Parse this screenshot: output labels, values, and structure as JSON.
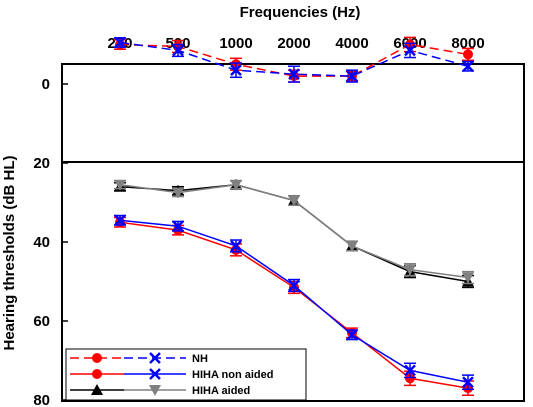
{
  "chart_data": {
    "type": "line",
    "title": "Frequencies (Hz)",
    "ylabel": "Hearing thresholds (dB HL)",
    "xlabel": "",
    "categories": [
      "250",
      "500",
      "1000",
      "2000",
      "4000",
      "6000",
      "8000"
    ],
    "ylim": [
      80,
      -8
    ],
    "yticks": [
      0,
      20,
      40,
      60,
      80
    ],
    "panel_split": 20,
    "grid": false,
    "legend_position": "bottom-left",
    "legend": [
      {
        "label": "NH",
        "markers": [
          "circle",
          "x"
        ],
        "style": "dashed",
        "colors": [
          "#ff0000",
          "#0000ff"
        ]
      },
      {
        "label": "HIHA non aided",
        "markers": [
          "circle",
          "x"
        ],
        "style": "solid",
        "colors": [
          "#ff0000",
          "#0000ff"
        ]
      },
      {
        "label": "HIHA aided",
        "markers": [
          "triangle-up",
          "triangle-down"
        ],
        "style": "solid",
        "colors": [
          "#000000",
          "#808080"
        ]
      }
    ],
    "series": [
      {
        "group": "NH",
        "color": "#ff0000",
        "marker": "circle",
        "style": "dashed",
        "values": [
          -10,
          -9.5,
          -5,
          -2,
          -2,
          -10,
          -7.5
        ],
        "errors": [
          1.2,
          1.5,
          1.5,
          1.5,
          1.2,
          1.8,
          1.5
        ]
      },
      {
        "group": "NH",
        "color": "#0000ff",
        "marker": "x",
        "style": "dashed",
        "values": [
          -10.5,
          -8.5,
          -3.5,
          -2.5,
          -2,
          -8.5,
          -4.5
        ],
        "errors": [
          1.2,
          1.5,
          1.8,
          2,
          1.5,
          1.8,
          1.2
        ]
      },
      {
        "group": "HIHA non aided",
        "color": "#ff0000",
        "marker": "circle",
        "style": "solid",
        "values": [
          35,
          37,
          42,
          51.5,
          63,
          74.5,
          77
        ],
        "errors": [
          1.2,
          1.2,
          1.5,
          1.5,
          1.2,
          1.8,
          1.8
        ]
      },
      {
        "group": "HIHA non aided",
        "color": "#0000ff",
        "marker": "x",
        "style": "solid",
        "values": [
          34.5,
          36,
          41,
          51,
          63.5,
          72.5,
          75.5
        ],
        "errors": [
          1.2,
          1.2,
          1.5,
          1.5,
          1.2,
          1.8,
          1.8
        ]
      },
      {
        "group": "HIHA aided",
        "color": "#000000",
        "marker": "triangle-up",
        "style": "solid",
        "values": [
          26,
          27,
          25.5,
          29.5,
          41,
          47.5,
          50
        ],
        "errors": [
          1,
          1,
          1,
          1.2,
          1.2,
          1.5,
          1.5
        ]
      },
      {
        "group": "HIHA aided",
        "color": "#808080",
        "marker": "triangle-down",
        "style": "solid",
        "values": [
          25.5,
          27.5,
          25.5,
          29.5,
          41,
          47,
          49
        ],
        "errors": [
          1,
          1,
          1,
          1.2,
          1.2,
          1.5,
          1.5
        ]
      }
    ]
  }
}
